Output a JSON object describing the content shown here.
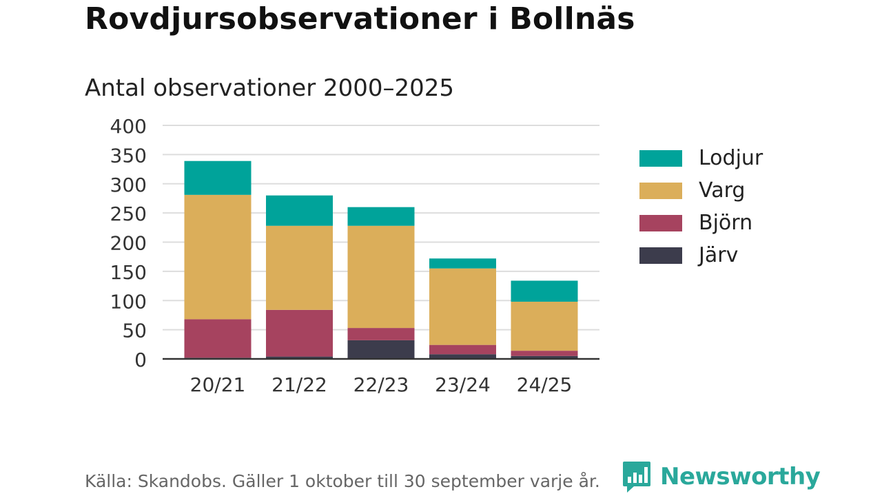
{
  "header": {
    "title": "Rovdjursobservationer i Bollnäs",
    "subtitle": "Antal observationer 2000–2025"
  },
  "footer": {
    "source": "Källa: Skandobs. Gäller 1 oktober till 30 september varje år.",
    "brand": "Newsworthy"
  },
  "colors": {
    "Lodjur": "#00a39a",
    "Varg": "#dbae5a",
    "Björn": "#a6435f",
    "Järv": "#3c3c4c",
    "grid": "#dddddd",
    "axis": "#333333",
    "brand": "#2aa89b"
  },
  "legend": [
    "Lodjur",
    "Varg",
    "Björn",
    "Järv"
  ],
  "chart_data": {
    "type": "bar",
    "stacked": true,
    "title": "Rovdjursobservationer i Bollnäs",
    "subtitle": "Antal observationer 2000–2025",
    "xlabel": "",
    "ylabel": "",
    "ylim": [
      0,
      400
    ],
    "yticks": [
      0,
      50,
      100,
      150,
      200,
      250,
      300,
      350,
      400
    ],
    "grid": true,
    "legend_position": "right",
    "categories": [
      "20/21",
      "21/22",
      "22/23",
      "23/24",
      "24/25"
    ],
    "series": [
      {
        "name": "Järv",
        "values": [
          2,
          4,
          32,
          8,
          5
        ]
      },
      {
        "name": "Björn",
        "values": [
          66,
          80,
          21,
          16,
          9
        ]
      },
      {
        "name": "Varg",
        "values": [
          213,
          144,
          175,
          131,
          84
        ]
      },
      {
        "name": "Lodjur",
        "values": [
          58,
          52,
          32,
          17,
          36
        ]
      }
    ]
  }
}
